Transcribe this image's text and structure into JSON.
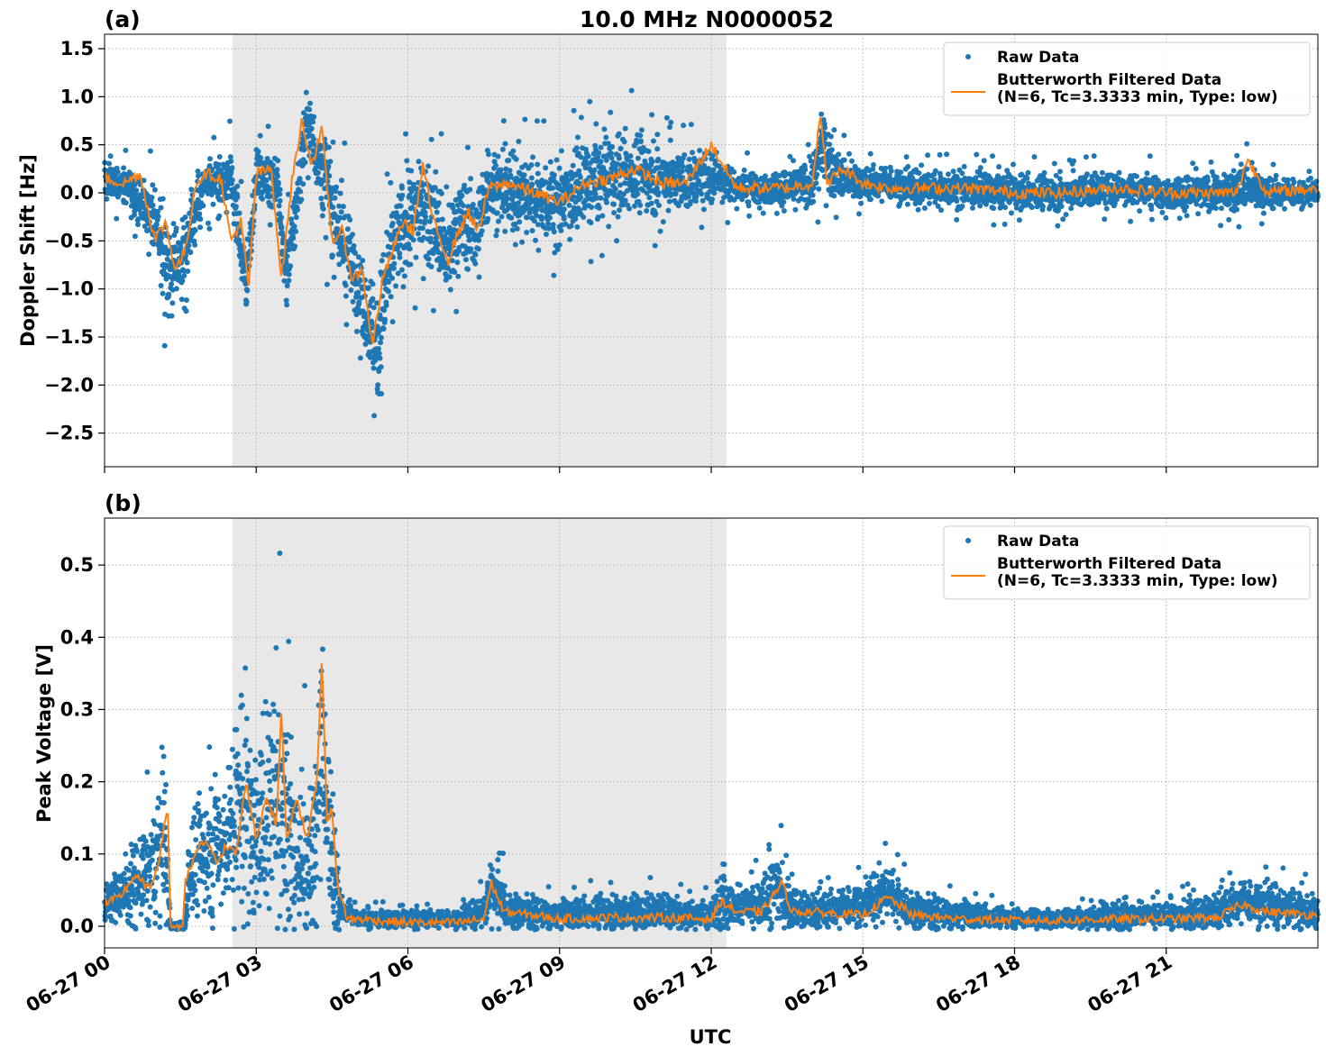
{
  "chart_data": [
    {
      "type": "scatter",
      "panel_label": "(a)",
      "title": "10.0 MHz N0000052",
      "ylabel": "Doppler Shift [Hz]",
      "xlabel": "",
      "xlim_hours": [
        0,
        24
      ],
      "ylim": [
        -2.85,
        1.65
      ],
      "yticks": [
        1.5,
        1.0,
        0.5,
        0.0,
        -0.5,
        -1.0,
        -1.5,
        -2.0,
        -2.5
      ],
      "ytick_labels": [
        "1.5",
        "1.0",
        "0.5",
        "0.0",
        "−0.5",
        "−1.0",
        "−1.5",
        "−2.0",
        "−2.5"
      ],
      "grid": true,
      "legend_position": "top-right",
      "shaded_region_hours": [
        2.53,
        12.3
      ],
      "series": [
        {
          "name": "Raw Data",
          "kind": "points",
          "color": "#1f77b4",
          "x_hours": [
            0,
            0.5,
            1,
            1.25,
            1.6,
            2,
            2.5,
            2.8,
            3,
            3.4,
            3.6,
            4,
            4.2,
            4.6,
            4.8,
            5,
            5.2,
            5.4,
            5.6,
            5.8,
            6,
            6.3,
            6.6,
            6.8,
            7,
            7.4,
            7.6,
            8,
            8.5,
            9,
            9.5,
            10,
            10.5,
            11,
            11.5,
            12,
            12.5,
            13,
            13.5,
            14,
            14.2,
            14.5,
            15,
            15.5,
            16,
            17,
            18,
            19,
            20,
            21,
            22,
            22.5,
            23,
            24
          ],
          "y_center": [
            0.15,
            0.05,
            -0.3,
            -0.85,
            -0.6,
            0.1,
            0.15,
            -0.95,
            0.2,
            0.15,
            -0.9,
            0.7,
            0.4,
            -0.3,
            -0.6,
            -0.9,
            -1.2,
            -1.6,
            -0.8,
            -0.5,
            -0.3,
            -0.1,
            -0.4,
            -0.7,
            -0.3,
            -0.4,
            0.1,
            0.0,
            -0.05,
            -0.1,
            0.1,
            0.15,
            0.2,
            0.15,
            0.1,
            0.2,
            0.05,
            0.05,
            0.05,
            0.1,
            0.5,
            0.15,
            0.1,
            0.1,
            0.05,
            0.05,
            0.0,
            0.0,
            0.05,
            0.0,
            0.0,
            0.05,
            0.0,
            0.0
          ],
          "y_spread": [
            0.15,
            0.15,
            0.3,
            0.4,
            0.35,
            0.2,
            0.25,
            0.3,
            0.2,
            0.25,
            0.3,
            0.3,
            0.35,
            0.5,
            0.4,
            0.4,
            0.45,
            0.5,
            0.5,
            0.45,
            0.45,
            0.45,
            0.45,
            0.45,
            0.4,
            0.4,
            0.35,
            0.35,
            0.35,
            0.35,
            0.35,
            0.35,
            0.35,
            0.3,
            0.25,
            0.25,
            0.15,
            0.15,
            0.15,
            0.2,
            0.35,
            0.2,
            0.15,
            0.15,
            0.15,
            0.15,
            0.15,
            0.15,
            0.15,
            0.15,
            0.15,
            0.2,
            0.15,
            0.1
          ]
        },
        {
          "name": "Butterworth Filtered Data\n(N=6, Tc=3.3333 min, Type: low)",
          "kind": "line",
          "color": "#ff7f0e",
          "x_hours": [
            0,
            0.4,
            0.7,
            1,
            1.2,
            1.4,
            1.6,
            1.8,
            2,
            2.3,
            2.5,
            2.7,
            2.85,
            3,
            3.3,
            3.5,
            3.7,
            3.9,
            4.1,
            4.3,
            4.5,
            4.7,
            4.9,
            5.1,
            5.3,
            5.5,
            5.7,
            5.9,
            6.1,
            6.3,
            6.5,
            6.8,
            7,
            7.2,
            7.4,
            7.6,
            8,
            8.5,
            9,
            9.5,
            10,
            10.5,
            11,
            11.5,
            12,
            12.5,
            13,
            13.5,
            14,
            14.15,
            14.3,
            14.6,
            15,
            15.5,
            16,
            17,
            18,
            19,
            20,
            21,
            22,
            22.4,
            22.6,
            23,
            24
          ],
          "y": [
            0.15,
            0.1,
            0.2,
            -0.5,
            -0.3,
            -0.8,
            -0.6,
            0.1,
            0.2,
            0.15,
            -0.5,
            -0.3,
            -1.0,
            0.2,
            0.25,
            -0.9,
            0.1,
            0.75,
            0.3,
            0.65,
            -0.5,
            -0.4,
            -0.9,
            -0.8,
            -1.6,
            -0.9,
            -0.6,
            -0.3,
            -0.4,
            0.3,
            -0.3,
            -0.7,
            -0.4,
            -0.2,
            -0.4,
            0.05,
            0.1,
            0.0,
            -0.1,
            0.1,
            0.15,
            0.25,
            0.1,
            0.1,
            0.5,
            0.05,
            0.05,
            0.05,
            0.1,
            0.8,
            0.1,
            0.25,
            0.1,
            0.05,
            0.05,
            0.05,
            0.0,
            0.0,
            0.05,
            0.0,
            0.0,
            0.0,
            0.35,
            0.0,
            0.05
          ]
        }
      ]
    },
    {
      "type": "scatter",
      "panel_label": "(b)",
      "title": "",
      "ylabel": "Peak Voltage [V]",
      "xlabel": "UTC",
      "xlim_hours": [
        0,
        24
      ],
      "ylim": [
        -0.03,
        0.565
      ],
      "yticks": [
        0.0,
        0.1,
        0.2,
        0.3,
        0.4,
        0.5
      ],
      "ytick_labels": [
        "0.0",
        "0.1",
        "0.2",
        "0.3",
        "0.4",
        "0.5"
      ],
      "xticks_hours": [
        0,
        3,
        6,
        9,
        12,
        15,
        18,
        21
      ],
      "xtick_labels": [
        "06-27 00",
        "06-27 03",
        "06-27 06",
        "06-27 09",
        "06-27 12",
        "06-27 15",
        "06-27 18",
        "06-27 21"
      ],
      "grid": true,
      "legend_position": "top-right",
      "shaded_region_hours": [
        2.53,
        12.3
      ],
      "series": [
        {
          "name": "Raw Data",
          "kind": "points",
          "color": "#1f77b4",
          "x_hours": [
            0,
            0.5,
            0.9,
            1.2,
            1.3,
            1.35,
            1.6,
            1.65,
            2,
            2.5,
            2.7,
            3,
            3.4,
            3.6,
            3.8,
            4.1,
            4.3,
            4.5,
            4.7,
            5,
            6,
            7,
            7.5,
            7.7,
            8,
            9,
            10,
            11,
            12,
            12.2,
            12.5,
            13,
            13.3,
            13.5,
            14,
            15,
            15.5,
            16,
            17,
            18,
            19,
            20,
            21,
            22,
            22.5,
            23,
            24
          ],
          "y_center": [
            0.03,
            0.05,
            0.08,
            0.12,
            0.0,
            0.0,
            0.0,
            0.08,
            0.1,
            0.12,
            0.2,
            0.12,
            0.2,
            0.15,
            0.1,
            0.08,
            0.3,
            0.1,
            0.02,
            0.01,
            0.01,
            0.01,
            0.02,
            0.06,
            0.02,
            0.015,
            0.02,
            0.02,
            0.015,
            0.04,
            0.025,
            0.03,
            0.06,
            0.03,
            0.02,
            0.03,
            0.05,
            0.02,
            0.015,
            0.01,
            0.01,
            0.015,
            0.015,
            0.02,
            0.035,
            0.03,
            0.02
          ],
          "y_spread": [
            0.02,
            0.04,
            0.06,
            0.1,
            0.005,
            0.005,
            0.005,
            0.06,
            0.07,
            0.08,
            0.15,
            0.1,
            0.15,
            0.15,
            0.1,
            0.1,
            0.12,
            0.1,
            0.01,
            0.01,
            0.01,
            0.01,
            0.02,
            0.04,
            0.02,
            0.015,
            0.02,
            0.02,
            0.015,
            0.03,
            0.025,
            0.03,
            0.05,
            0.025,
            0.02,
            0.025,
            0.03,
            0.02,
            0.015,
            0.01,
            0.01,
            0.015,
            0.015,
            0.02,
            0.025,
            0.025,
            0.02
          ]
        },
        {
          "name": "Butterworth Filtered Data\n(N=6, Tc=3.3333 min, Type: low)",
          "kind": "line",
          "color": "#ff7f0e",
          "x_hours": [
            0,
            0.3,
            0.6,
            0.9,
            1.1,
            1.25,
            1.3,
            1.55,
            1.6,
            1.8,
            2,
            2.2,
            2.4,
            2.6,
            2.8,
            3,
            3.2,
            3.4,
            3.5,
            3.6,
            3.8,
            4,
            4.2,
            4.3,
            4.4,
            4.5,
            4.6,
            4.8,
            5,
            6,
            7,
            7.5,
            7.65,
            7.9,
            8.5,
            9,
            10,
            11,
            12,
            12.2,
            12.5,
            13,
            13.4,
            13.6,
            14,
            15,
            15.5,
            16,
            17,
            18,
            19,
            20,
            21,
            22,
            22.5,
            23,
            24
          ],
          "y": [
            0.03,
            0.04,
            0.07,
            0.05,
            0.1,
            0.17,
            0.0,
            0.0,
            0.06,
            0.1,
            0.12,
            0.09,
            0.11,
            0.1,
            0.2,
            0.12,
            0.18,
            0.14,
            0.3,
            0.12,
            0.18,
            0.12,
            0.2,
            0.37,
            0.15,
            0.16,
            0.06,
            0.01,
            0.01,
            0.005,
            0.005,
            0.01,
            0.06,
            0.02,
            0.015,
            0.01,
            0.012,
            0.012,
            0.01,
            0.035,
            0.02,
            0.02,
            0.06,
            0.02,
            0.02,
            0.015,
            0.04,
            0.015,
            0.01,
            0.008,
            0.008,
            0.01,
            0.01,
            0.012,
            0.03,
            0.02,
            0.015
          ]
        }
      ]
    }
  ]
}
